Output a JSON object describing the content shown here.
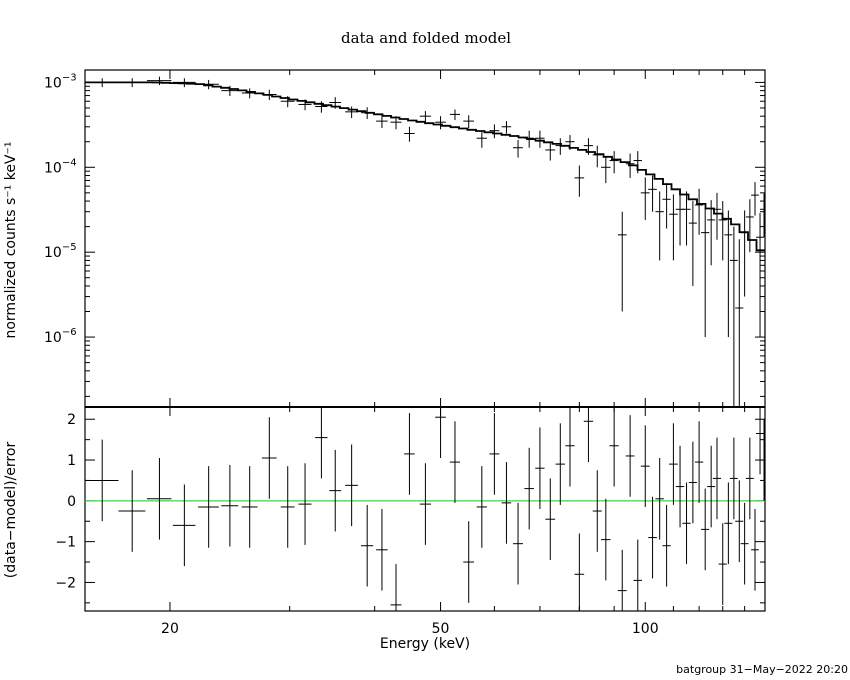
{
  "chart_data": [
    {
      "type": "scatter",
      "title": "data and folded model",
      "xlabel": "Energy (keV)",
      "ylabel": "normalized counts s⁻¹ keV⁻¹",
      "xscale": "log",
      "yscale": "log",
      "xlim": [
        15,
        150
      ],
      "ylim": [
        1.5e-07,
        0.0014
      ],
      "x_ticks": [
        {
          "value": 20,
          "label": "20"
        },
        {
          "value": 50,
          "label": "50"
        },
        {
          "value": 100,
          "label": "100"
        }
      ],
      "y_ticks": [
        {
          "value": 0.001,
          "mantissa": "10",
          "exp": "−3"
        },
        {
          "value": 0.0001,
          "mantissa": "10",
          "exp": "−4"
        },
        {
          "value": 1e-05,
          "mantissa": "10",
          "exp": "−5"
        },
        {
          "value": 1e-06,
          "mantissa": "10",
          "exp": "−6"
        }
      ],
      "series": [
        {
          "kind": "data",
          "points": [
            [
              15.9,
              0.001,
              0.9,
              0.00012
            ],
            [
              17.6,
              0.001,
              0.8,
              0.00012
            ],
            [
              19.3,
              0.00105,
              0.8,
              0.00012
            ],
            [
              21.0,
              0.001,
              0.8,
              0.00012
            ],
            [
              22.8,
              0.00095,
              0.8,
              0.00012
            ],
            [
              24.5,
              0.0008,
              0.7,
              0.00011
            ],
            [
              26.2,
              0.00075,
              0.7,
              0.0001
            ],
            [
              28.0,
              0.00072,
              0.7,
              0.0001
            ],
            [
              29.8,
              0.0006,
              0.7,
              9e-05
            ],
            [
              31.6,
              0.00055,
              0.7,
              8e-05
            ],
            [
              33.4,
              0.00052,
              0.7,
              8e-05
            ],
            [
              35.0,
              0.00058,
              0.7,
              9e-05
            ],
            [
              37.0,
              0.00045,
              0.8,
              7e-05
            ],
            [
              39.0,
              0.00044,
              0.8,
              7e-05
            ],
            [
              41.0,
              0.00035,
              0.8,
              6e-05
            ],
            [
              43.0,
              0.00034,
              0.8,
              6e-05
            ],
            [
              45.0,
              0.00025,
              0.8,
              5e-05
            ],
            [
              47.5,
              0.0004,
              0.9,
              6e-05
            ],
            [
              50.0,
              0.00034,
              0.9,
              6e-05
            ],
            [
              52.5,
              0.00042,
              0.9,
              6e-05
            ],
            [
              55.0,
              0.00035,
              1.0,
              6e-05
            ],
            [
              57.5,
              0.00022,
              1.0,
              5e-05
            ],
            [
              60.0,
              0.00027,
              1.0,
              5e-05
            ],
            [
              62.5,
              0.0003,
              1.0,
              5e-05
            ],
            [
              65.0,
              0.00017,
              1.1,
              4e-05
            ],
            [
              67.5,
              0.00022,
              1.1,
              5e-05
            ],
            [
              70.0,
              0.00022,
              1.1,
              5e-05
            ],
            [
              72.5,
              0.00016,
              1.2,
              4e-05
            ],
            [
              75.0,
              0.00018,
              1.2,
              4e-05
            ],
            [
              77.5,
              0.0002,
              1.2,
              4e-05
            ],
            [
              80.0,
              7.5e-05,
              1.3,
              3e-05
            ],
            [
              82.5,
              0.00018,
              1.3,
              4e-05
            ],
            [
              85.0,
              0.00014,
              1.3,
              4e-05
            ],
            [
              87.5,
              0.0001,
              1.4,
              3.5e-05
            ],
            [
              90.0,
              0.00012,
              1.4,
              3.5e-05
            ],
            [
              92.5,
              1.6e-05,
              1.4,
              1.4e-05
            ],
            [
              95.0,
              0.00011,
              1.4,
              3.5e-05
            ],
            [
              97.5,
              0.00012,
              1.4,
              3.5e-05
            ],
            [
              100.0,
              5e-05,
              1.5,
              2.6e-05
            ],
            [
              102.5,
              5.5e-05,
              1.5,
              2.5e-05
            ],
            [
              105.0,
              3e-05,
              1.5,
              2.2e-05
            ],
            [
              107.5,
              4.2e-05,
              1.5,
              2.3e-05
            ],
            [
              110.0,
              2.8e-05,
              1.6,
              2e-05
            ],
            [
              112.5,
              3.2e-05,
              1.6,
              2e-05
            ],
            [
              115.0,
              3.2e-05,
              1.6,
              2e-05
            ],
            [
              117.5,
              2.2e-05,
              1.6,
              1.8e-05
            ],
            [
              120.0,
              3.6e-05,
              1.7,
              2e-05
            ],
            [
              122.5,
              1.7e-05,
              1.7,
              1.6e-05
            ],
            [
              125.0,
              2.4e-05,
              1.7,
              1.7e-05
            ],
            [
              127.5,
              3.2e-05,
              1.8,
              1.8e-05
            ],
            [
              130.0,
              2.4e-05,
              1.8,
              1.6e-05
            ],
            [
              132.5,
              1.6e-05,
              1.8,
              1.5e-05
            ],
            [
              135.0,
              8e-06,
              1.8,
              1.2e-05
            ],
            [
              137.5,
              2.2e-06,
              1.9,
              1.2e-05
            ],
            [
              140.0,
              1.7e-05,
              1.9,
              1.4e-05
            ],
            [
              142.5,
              2.6e-05,
              1.9,
              1.6e-05
            ],
            [
              145.0,
              4.7e-05,
              1.9,
              2e-05
            ],
            [
              147.5,
              1.5e-05,
              2.0,
              1.4e-05
            ],
            [
              149.5,
              3.2e-05,
              2.0,
              1.7e-05
            ]
          ]
        },
        {
          "kind": "model",
          "knots": [
            [
              15,
              0.001
            ],
            [
              19,
              0.001
            ],
            [
              22,
              0.00096
            ],
            [
              25,
              0.00083
            ],
            [
              30,
              0.00064
            ],
            [
              36,
              0.0005
            ],
            [
              45,
              0.00036
            ],
            [
              55,
              0.00028
            ],
            [
              65,
              0.00023
            ],
            [
              75,
              0.000185
            ],
            [
              85,
              0.000145
            ],
            [
              95,
              0.00011
            ],
            [
              105,
              7.2e-05
            ],
            [
              115,
              4.6e-05
            ],
            [
              125,
              3.2e-05
            ],
            [
              135,
              2.2e-05
            ],
            [
              145,
              1.3e-05
            ],
            [
              150,
              9e-06
            ]
          ]
        }
      ]
    },
    {
      "type": "scatter",
      "xlabel": "Energy (keV)",
      "ylabel": "(data−model)/error",
      "xscale": "log",
      "xlim": [
        15,
        150
      ],
      "ylim": [
        -2.7,
        2.3
      ],
      "y_ticks": [
        {
          "value": 2,
          "label": "2"
        },
        {
          "value": 1,
          "label": "1"
        },
        {
          "value": 0,
          "label": "0"
        },
        {
          "value": -1,
          "label": "−1"
        },
        {
          "value": -2,
          "label": "−2"
        }
      ],
      "reference_line": {
        "value": 0,
        "color": "#33dd33"
      },
      "points": [
        [
          15.9,
          0.5,
          0.9,
          1.0
        ],
        [
          17.6,
          -0.25,
          0.8,
          1.0
        ],
        [
          19.3,
          0.05,
          0.8,
          1.0
        ],
        [
          21.0,
          -0.6,
          0.8,
          1.0
        ],
        [
          22.8,
          -0.15,
          0.8,
          1.0
        ],
        [
          24.5,
          -0.12,
          0.7,
          1.0
        ],
        [
          26.2,
          -0.15,
          0.7,
          1.0
        ],
        [
          28.0,
          1.05,
          0.7,
          1.0
        ],
        [
          29.8,
          -0.15,
          0.7,
          1.0
        ],
        [
          31.6,
          -0.08,
          0.7,
          1.0
        ],
        [
          33.4,
          1.55,
          0.7,
          1.0
        ],
        [
          35.0,
          0.25,
          0.7,
          1.0
        ],
        [
          37.0,
          0.38,
          0.8,
          1.0
        ],
        [
          39.0,
          -1.1,
          0.8,
          1.0
        ],
        [
          41.0,
          -1.2,
          0.8,
          1.0
        ],
        [
          43.0,
          -2.55,
          0.8,
          1.0
        ],
        [
          45.0,
          1.15,
          0.8,
          1.0
        ],
        [
          47.5,
          -0.08,
          0.9,
          1.0
        ],
        [
          50.0,
          2.05,
          0.9,
          1.0
        ],
        [
          52.5,
          0.95,
          0.9,
          1.0
        ],
        [
          55.0,
          -1.5,
          1.0,
          1.0
        ],
        [
          57.5,
          -0.15,
          1.0,
          1.0
        ],
        [
          60.0,
          1.15,
          1.0,
          1.0
        ],
        [
          62.5,
          -0.05,
          1.0,
          1.0
        ],
        [
          65.0,
          -1.05,
          1.1,
          1.0
        ],
        [
          67.5,
          0.3,
          1.1,
          1.0
        ],
        [
          70.0,
          0.8,
          1.1,
          1.0
        ],
        [
          72.5,
          -0.45,
          1.2,
          1.0
        ],
        [
          75.0,
          0.9,
          1.2,
          1.0
        ],
        [
          77.5,
          1.35,
          1.2,
          1.0
        ],
        [
          80.0,
          -1.8,
          1.3,
          1.0
        ],
        [
          82.5,
          1.95,
          1.3,
          1.0
        ],
        [
          85.0,
          -0.25,
          1.3,
          1.0
        ],
        [
          87.5,
          -0.95,
          1.4,
          1.0
        ],
        [
          90.0,
          1.35,
          1.4,
          1.0
        ],
        [
          92.5,
          -2.2,
          1.4,
          1.0
        ],
        [
          95.0,
          1.1,
          1.4,
          1.0
        ],
        [
          97.5,
          -1.95,
          1.4,
          1.0
        ],
        [
          100.0,
          0.85,
          1.5,
          1.0
        ],
        [
          102.5,
          -0.9,
          1.5,
          1.0
        ],
        [
          105.0,
          0.05,
          1.5,
          1.0
        ],
        [
          107.5,
          -1.1,
          1.5,
          1.0
        ],
        [
          110.0,
          0.9,
          1.6,
          1.0
        ],
        [
          112.5,
          0.35,
          1.6,
          1.0
        ],
        [
          115.0,
          -0.55,
          1.6,
          1.0
        ],
        [
          117.5,
          0.45,
          1.6,
          1.0
        ],
        [
          120.0,
          0.95,
          1.7,
          1.0
        ],
        [
          122.5,
          -0.7,
          1.7,
          1.0
        ],
        [
          125.0,
          0.35,
          1.7,
          1.0
        ],
        [
          127.5,
          0.55,
          1.8,
          1.0
        ],
        [
          130.0,
          -1.55,
          1.8,
          1.0
        ],
        [
          132.5,
          -0.55,
          1.8,
          1.0
        ],
        [
          135.0,
          0.55,
          1.8,
          1.0
        ],
        [
          137.5,
          -0.5,
          1.9,
          1.0
        ],
        [
          140.0,
          -1.05,
          1.9,
          1.0
        ],
        [
          142.5,
          0.55,
          1.9,
          1.0
        ],
        [
          145.0,
          -1.2,
          1.9,
          1.0
        ],
        [
          147.5,
          1.65,
          2.0,
          1.0
        ],
        [
          149.5,
          1.0,
          2.0,
          1.0
        ]
      ]
    }
  ],
  "footer": "batgroup 31−May−2022 20:20"
}
